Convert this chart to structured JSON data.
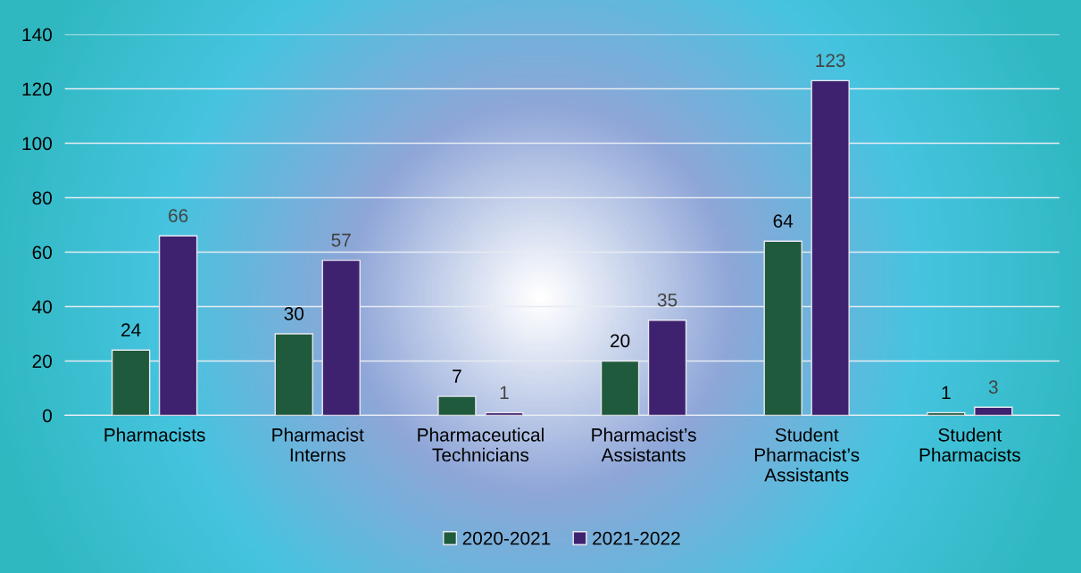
{
  "chart_data": {
    "type": "bar",
    "categories": [
      "Pharmacists",
      "Pharmacist Interns",
      "Pharmaceutical Technicians",
      "Pharmacist’s Assistants",
      "Student Pharmacist’s Assistants",
      "Student Pharmacists"
    ],
    "series": [
      {
        "name": "2020-2021",
        "color": "#1f5a3c",
        "values": [
          24,
          30,
          7,
          20,
          64,
          1
        ]
      },
      {
        "name": "2021-2022",
        "color": "#3e2270",
        "values": [
          66,
          57,
          1,
          35,
          123,
          3
        ]
      }
    ],
    "ylim": [
      0,
      140
    ],
    "yticks": [
      0,
      20,
      40,
      60,
      80,
      100,
      120,
      140
    ],
    "grid": "y",
    "legend": "bottom",
    "data_labels": true
  }
}
